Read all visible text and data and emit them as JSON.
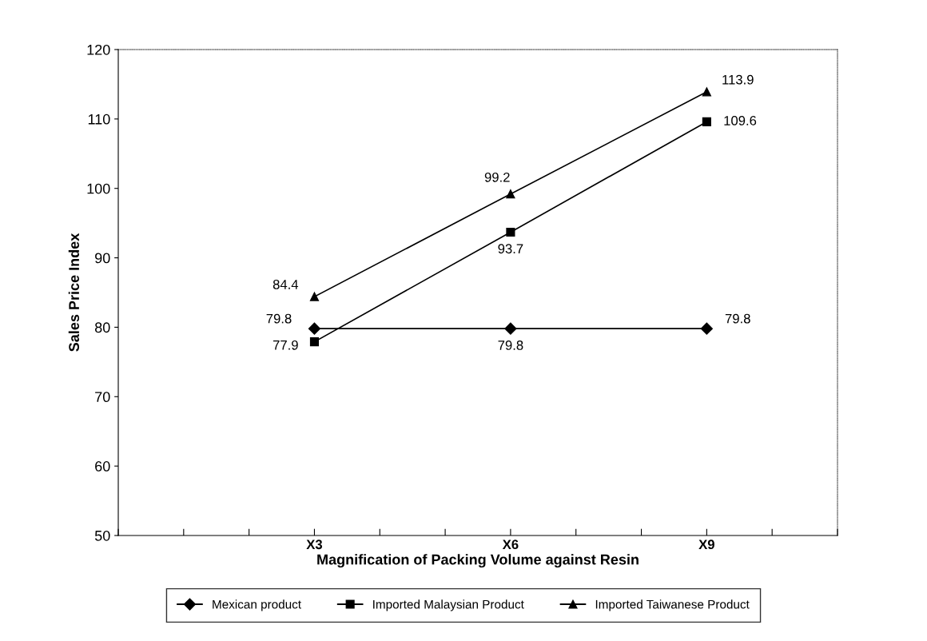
{
  "chart_data": {
    "type": "line",
    "xlabel": "Magnification of Packing Volume against Resin",
    "ylabel": "Sales Price Index",
    "categories": [
      null,
      null,
      null,
      "X3",
      null,
      null,
      "X6",
      null,
      null,
      "X9",
      null,
      null
    ],
    "ylim": [
      50,
      120
    ],
    "yticks": [
      50,
      60,
      70,
      80,
      90,
      100,
      110,
      120
    ],
    "grid": false,
    "legend": "bottom",
    "data_labels": true,
    "line_style": "solid",
    "series": [
      {
        "name": "Mexican product",
        "color": "#000000",
        "marker": "diamond",
        "values": [
          null,
          null,
          null,
          79.8,
          null,
          null,
          79.8,
          null,
          null,
          79.8,
          null,
          null
        ]
      },
      {
        "name": "Imported Malaysian Product",
        "color": "#000000",
        "marker": "square",
        "values": [
          null,
          null,
          null,
          77.9,
          null,
          null,
          93.7,
          null,
          null,
          109.6,
          null,
          null
        ]
      },
      {
        "name": "Imported Taiwanese Product",
        "color": "#000000",
        "marker": "triangle",
        "values": [
          null,
          null,
          null,
          84.4,
          null,
          null,
          99.2,
          null,
          null,
          113.9,
          null,
          null
        ]
      }
    ]
  }
}
